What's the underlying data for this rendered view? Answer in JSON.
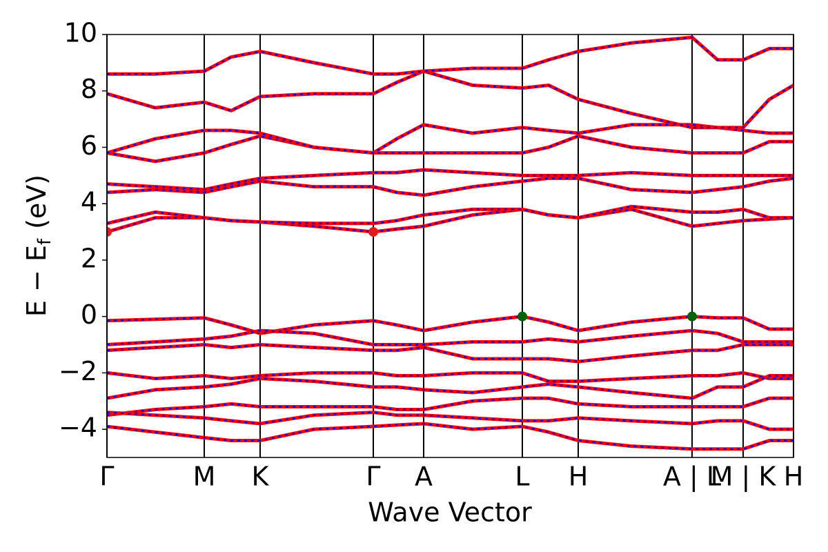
{
  "chart_data": {
    "type": "line",
    "xlabel": "Wave Vector",
    "ylabel": "E − E",
    "ylabel_sub": "f",
    "ylabel_unit": "(eV)",
    "xlim": [
      0,
      9.95
    ],
    "ylim": [
      -5,
      10
    ],
    "xticks": [
      {
        "value": 0,
        "label": "Γ"
      },
      {
        "value": 1.41,
        "label": "M"
      },
      {
        "value": 2.22,
        "label": "K"
      },
      {
        "value": 3.86,
        "label": "Γ"
      },
      {
        "value": 4.59,
        "label": "A"
      },
      {
        "value": 6.02,
        "label": "L"
      },
      {
        "value": 6.83,
        "label": "H"
      },
      {
        "value": 8.48,
        "label": "A | L"
      },
      {
        "value": 9.22,
        "label": "M | K"
      },
      {
        "value": 9.95,
        "label": "H"
      }
    ],
    "yticks": [
      {
        "value": -4,
        "label": "−4"
      },
      {
        "value": -2,
        "label": "−2"
      },
      0,
      2,
      4,
      6,
      8,
      10
    ],
    "grid": true,
    "line_color": "#ff0000",
    "dash_color": "#0000ff",
    "x": [
      0,
      0.7,
      1.41,
      1.8,
      2.22,
      3.0,
      3.86,
      4.2,
      4.59,
      5.3,
      6.02,
      6.4,
      6.83,
      7.6,
      8.48,
      8.85,
      9.22,
      9.6,
      9.95
    ],
    "series": [
      {
        "values": [
          3.0,
          3.5,
          3.5,
          3.4,
          3.35,
          3.2,
          3.0,
          3.1,
          3.2,
          3.6,
          3.8,
          3.6,
          3.5,
          3.8,
          3.2,
          3.3,
          3.4,
          3.45,
          3.5
        ]
      },
      {
        "values": [
          3.3,
          3.7,
          3.5,
          3.4,
          3.35,
          3.3,
          3.3,
          3.4,
          3.6,
          3.8,
          3.8,
          3.6,
          3.5,
          3.9,
          3.7,
          3.7,
          3.8,
          3.5,
          3.5
        ]
      },
      {
        "values": [
          4.4,
          4.5,
          4.4,
          4.6,
          4.8,
          4.6,
          4.6,
          4.4,
          4.3,
          4.6,
          4.8,
          4.9,
          4.9,
          4.5,
          4.4,
          4.5,
          4.6,
          4.8,
          4.9
        ]
      },
      {
        "values": [
          4.7,
          4.6,
          4.5,
          4.7,
          4.9,
          5.0,
          5.1,
          5.1,
          5.2,
          5.1,
          5.0,
          5.0,
          5.0,
          5.1,
          5.0,
          5.0,
          5.0,
          5.0,
          5.0
        ]
      },
      {
        "values": [
          5.8,
          5.5,
          5.8,
          6.1,
          6.4,
          6.0,
          5.8,
          5.8,
          5.8,
          5.8,
          5.8,
          6.0,
          6.4,
          6.0,
          5.8,
          5.8,
          5.8,
          6.2,
          6.2
        ]
      },
      {
        "values": [
          5.8,
          6.3,
          6.6,
          6.6,
          6.5,
          6.0,
          5.8,
          6.3,
          6.8,
          6.5,
          6.7,
          6.6,
          6.5,
          6.8,
          6.8,
          6.7,
          6.6,
          6.5,
          6.5
        ]
      },
      {
        "values": [
          7.9,
          7.4,
          7.6,
          7.3,
          7.8,
          7.9,
          7.9,
          8.3,
          8.7,
          8.2,
          8.1,
          8.2,
          7.7,
          7.2,
          6.7,
          6.7,
          6.7,
          7.7,
          8.2
        ]
      },
      {
        "values": [
          8.6,
          8.6,
          8.7,
          9.2,
          9.4,
          9.0,
          8.6,
          8.6,
          8.7,
          8.8,
          8.8,
          9.1,
          9.4,
          9.7,
          9.9,
          9.1,
          9.1,
          9.5,
          9.5
        ]
      },
      {
        "values": [
          -0.15,
          -0.1,
          -0.05,
          -0.3,
          -0.6,
          -0.3,
          -0.15,
          -0.3,
          -0.5,
          -0.2,
          0.0,
          -0.2,
          -0.5,
          -0.2,
          0.0,
          -0.05,
          -0.05,
          -0.45,
          -0.45
        ]
      },
      {
        "values": [
          -1.0,
          -0.9,
          -0.8,
          -0.7,
          -0.5,
          -0.6,
          -1.0,
          -1.0,
          -1.0,
          -0.9,
          -0.9,
          -0.8,
          -0.9,
          -0.7,
          -0.5,
          -0.6,
          -0.9,
          -0.9,
          -0.9
        ]
      },
      {
        "values": [
          -1.2,
          -1.1,
          -1.0,
          -1.1,
          -1.0,
          -1.1,
          -1.2,
          -1.2,
          -1.1,
          -1.5,
          -1.5,
          -1.5,
          -1.6,
          -1.4,
          -1.2,
          -1.2,
          -1.0,
          -1.0,
          -1.0
        ]
      },
      {
        "values": [
          -2.0,
          -2.2,
          -2.1,
          -2.2,
          -2.1,
          -2.0,
          -2.0,
          -2.1,
          -2.1,
          -2.0,
          -2.0,
          -2.3,
          -2.3,
          -2.2,
          -2.1,
          -2.1,
          -2.0,
          -2.2,
          -2.2
        ]
      },
      {
        "values": [
          -2.9,
          -2.6,
          -2.5,
          -2.4,
          -2.2,
          -2.3,
          -2.5,
          -2.5,
          -2.6,
          -2.7,
          -2.5,
          -2.4,
          -2.5,
          -2.7,
          -2.9,
          -2.5,
          -2.5,
          -2.1,
          -2.1
        ]
      },
      {
        "values": [
          -3.5,
          -3.3,
          -3.2,
          -3.1,
          -3.2,
          -3.2,
          -3.2,
          -3.3,
          -3.3,
          -3.0,
          -2.9,
          -2.9,
          -3.1,
          -3.2,
          -3.2,
          -3.2,
          -3.2,
          -2.9,
          -2.9
        ]
      },
      {
        "values": [
          -3.4,
          -3.5,
          -3.6,
          -3.7,
          -3.8,
          -3.5,
          -3.4,
          -3.5,
          -3.5,
          -3.6,
          -3.7,
          -3.7,
          -3.6,
          -3.7,
          -3.8,
          -3.7,
          -3.7,
          -4.0,
          -4.0
        ]
      },
      {
        "values": [
          -3.9,
          -4.1,
          -4.3,
          -4.4,
          -4.4,
          -4.0,
          -3.9,
          -3.85,
          -3.8,
          -4.0,
          -3.9,
          -4.1,
          -4.4,
          -4.6,
          -4.7,
          -4.7,
          -4.7,
          -4.4,
          -4.4
        ]
      }
    ],
    "points": [
      {
        "x": 0,
        "y": 3.0,
        "color": "#e41a1c"
      },
      {
        "x": 3.86,
        "y": 3.0,
        "color": "#e41a1c"
      },
      {
        "x": 6.02,
        "y": 0.0,
        "color": "#006400"
      },
      {
        "x": 8.48,
        "y": 0.0,
        "color": "#006400"
      }
    ]
  }
}
